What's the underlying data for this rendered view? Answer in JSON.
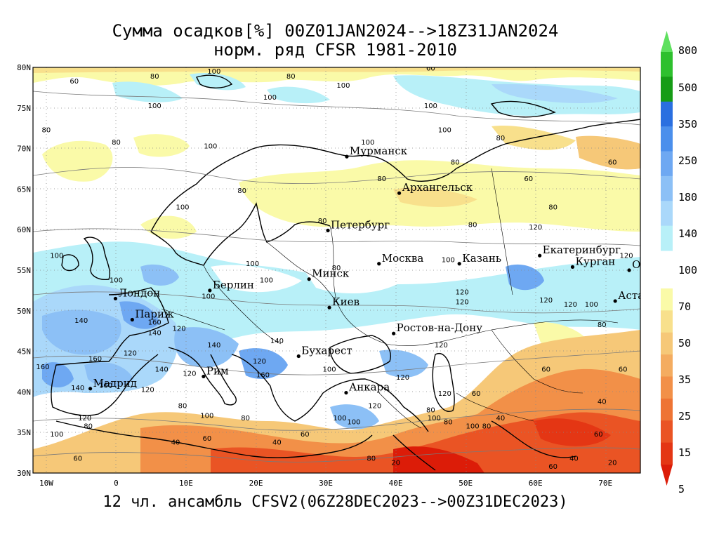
{
  "title": {
    "line1": "Сумма осадков[%] 00Z01JAN2024-->18Z31JAN2024",
    "line2": "норм. ряд CFSR 1981-2010"
  },
  "footer": "12 чл. ансамбль CFSV2(06Z28DEC2023-->00Z31DEC2023)",
  "axes": {
    "lat_labels": [
      "80N",
      "75N",
      "70N",
      "65N",
      "60N",
      "55N",
      "50N",
      "45N",
      "40N",
      "35N",
      "30N"
    ],
    "lon_labels": [
      "10W",
      "0",
      "10E",
      "20E",
      "30E",
      "40E",
      "50E",
      "60E",
      "70E"
    ]
  },
  "colorbar": {
    "upper_labels": [
      "800",
      "500",
      "350",
      "250",
      "180",
      "140"
    ],
    "middle_label": "100",
    "lower_labels": [
      "70",
      "50",
      "35",
      "25",
      "15",
      "5"
    ],
    "upper_colors": [
      "#5ee05e",
      "#2ec02e",
      "#169c16",
      "#2a6fe0",
      "#4b8fec",
      "#6ea8f2",
      "#8cc0f6",
      "#aad8fa",
      "#b8f0f8"
    ],
    "lower_colors": [
      "#fafaa8",
      "#f8e08c",
      "#f6c878",
      "#f4ac60",
      "#f29048",
      "#ee7434",
      "#ea5424",
      "#e43614",
      "#dc1c08"
    ]
  },
  "cities": [
    {
      "name": "Мурманск",
      "lon": 33,
      "lat": 69
    },
    {
      "name": "Архангельск",
      "lon": 40.5,
      "lat": 64.5
    },
    {
      "name": "Петербург",
      "lon": 30.3,
      "lat": 59.9
    },
    {
      "name": "Москва",
      "lon": 37.6,
      "lat": 55.8
    },
    {
      "name": "Казань",
      "lon": 49.1,
      "lat": 55.8
    },
    {
      "name": "Екатеринбург",
      "lon": 60.6,
      "lat": 56.8
    },
    {
      "name": "Курган",
      "lon": 65.3,
      "lat": 55.4
    },
    {
      "name": "Омск",
      "lon": 73.4,
      "lat": 55
    },
    {
      "name": "Астана",
      "lon": 71.4,
      "lat": 51.2
    },
    {
      "name": "Минск",
      "lon": 27.6,
      "lat": 53.9
    },
    {
      "name": "Берлин",
      "lon": 13.4,
      "lat": 52.5
    },
    {
      "name": "Лондон",
      "lon": -0.1,
      "lat": 51.5
    },
    {
      "name": "Париж",
      "lon": 2.3,
      "lat": 48.9
    },
    {
      "name": "Киев",
      "lon": 30.5,
      "lat": 50.4
    },
    {
      "name": "Ростов-на-Дону",
      "lon": 39.7,
      "lat": 47.2
    },
    {
      "name": "Бухарест",
      "lon": 26.1,
      "lat": 44.4
    },
    {
      "name": "Рим",
      "lon": 12.5,
      "lat": 41.9
    },
    {
      "name": "Мадрид",
      "lon": -3.7,
      "lat": 40.4
    },
    {
      "name": "Анкара",
      "lon": 32.9,
      "lat": 39.9
    }
  ],
  "contour_labels": [
    {
      "t": "60",
      "lon": -6,
      "lat": 78
    },
    {
      "t": "80",
      "lon": 5.5,
      "lat": 78.6
    },
    {
      "t": "100",
      "lon": 14,
      "lat": 79.2
    },
    {
      "t": "80",
      "lon": 25,
      "lat": 78.6
    },
    {
      "t": "100",
      "lon": 32.5,
      "lat": 77.5
    },
    {
      "t": "60",
      "lon": 45,
      "lat": 79.6
    },
    {
      "t": "100",
      "lon": 5.5,
      "lat": 75
    },
    {
      "t": "100",
      "lon": 22,
      "lat": 76
    },
    {
      "t": "100",
      "lon": 45,
      "lat": 75
    },
    {
      "t": "80",
      "lon": -10,
      "lat": 72
    },
    {
      "t": "80",
      "lon": 0,
      "lat": 70.5
    },
    {
      "t": "100",
      "lon": 13.5,
      "lat": 70
    },
    {
      "t": "100",
      "lon": 36,
      "lat": 70.5
    },
    {
      "t": "100",
      "lon": 47,
      "lat": 72
    },
    {
      "t": "80",
      "lon": 55,
      "lat": 71
    },
    {
      "t": "80",
      "lon": 38,
      "lat": 66
    },
    {
      "t": "80",
      "lon": 18,
      "lat": 64.5
    },
    {
      "t": "60",
      "lon": 59,
      "lat": 66
    },
    {
      "t": "80",
      "lon": 48.5,
      "lat": 68
    },
    {
      "t": "80",
      "lon": 62.5,
      "lat": 62.5
    },
    {
      "t": "60",
      "lon": 71,
      "lat": 68
    },
    {
      "t": "100",
      "lon": 9.5,
      "lat": 62.5
    },
    {
      "t": "80",
      "lon": 51,
      "lat": 60.3
    },
    {
      "t": "120",
      "lon": 60,
      "lat": 60
    },
    {
      "t": "80",
      "lon": 29.5,
      "lat": 60.8
    },
    {
      "t": "100",
      "lon": -8.5,
      "lat": 56.5
    },
    {
      "t": "80",
      "lon": 31.5,
      "lat": 55
    },
    {
      "t": "100",
      "lon": 19.5,
      "lat": 55.5
    },
    {
      "t": "100",
      "lon": 21.5,
      "lat": 53.5
    },
    {
      "t": "100",
      "lon": 47.5,
      "lat": 56
    },
    {
      "t": "120",
      "lon": 73,
      "lat": 56.5
    },
    {
      "t": "120",
      "lon": 49.5,
      "lat": 52
    },
    {
      "t": "120",
      "lon": 49.5,
      "lat": 50.8
    },
    {
      "t": "120",
      "lon": 61.5,
      "lat": 51
    },
    {
      "t": "120",
      "lon": 65,
      "lat": 50.5
    },
    {
      "t": "100",
      "lon": 68,
      "lat": 50.5
    },
    {
      "t": "80",
      "lon": 69.5,
      "lat": 48
    },
    {
      "t": "100",
      "lon": 13.2,
      "lat": 51.5
    },
    {
      "t": "100",
      "lon": 0,
      "lat": 53.5
    },
    {
      "t": "140",
      "lon": -5,
      "lat": 48.5
    },
    {
      "t": "160",
      "lon": 5.5,
      "lat": 48.3
    },
    {
      "t": "140",
      "lon": 5.5,
      "lat": 47
    },
    {
      "t": "120",
      "lon": 9,
      "lat": 47.5
    },
    {
      "t": "140",
      "lon": 14,
      "lat": 45.5
    },
    {
      "t": "140",
      "lon": 23,
      "lat": 46
    },
    {
      "t": "120",
      "lon": 46.5,
      "lat": 45.5
    },
    {
      "t": "120",
      "lon": 2,
      "lat": 44.5
    },
    {
      "t": "160",
      "lon": -3,
      "lat": 43.8
    },
    {
      "t": "160",
      "lon": -10.5,
      "lat": 42.8
    },
    {
      "t": "120",
      "lon": 20.5,
      "lat": 43.5
    },
    {
      "t": "140",
      "lon": 6.5,
      "lat": 42.5
    },
    {
      "t": "120",
      "lon": 10.5,
      "lat": 42
    },
    {
      "t": "160",
      "lon": 21,
      "lat": 41.8
    },
    {
      "t": "100",
      "lon": 30.5,
      "lat": 42.5
    },
    {
      "t": "120",
      "lon": 41,
      "lat": 41.5
    },
    {
      "t": "160",
      "lon": -1.5,
      "lat": 40.5
    },
    {
      "t": "140",
      "lon": -5.5,
      "lat": 40.2
    },
    {
      "t": "120",
      "lon": 4.5,
      "lat": 40
    },
    {
      "t": "120",
      "lon": 47,
      "lat": 39.5
    },
    {
      "t": "60",
      "lon": 51.5,
      "lat": 39.5
    },
    {
      "t": "60",
      "lon": 61.5,
      "lat": 42.5
    },
    {
      "t": "60",
      "lon": 72.5,
      "lat": 42.5
    },
    {
      "t": "40",
      "lon": 69.5,
      "lat": 38.5
    },
    {
      "t": "80",
      "lon": 9.5,
      "lat": 38
    },
    {
      "t": "100",
      "lon": 13,
      "lat": 36.8
    },
    {
      "t": "80",
      "lon": 18.5,
      "lat": 36.5
    },
    {
      "t": "120",
      "lon": 37,
      "lat": 38
    },
    {
      "t": "80",
      "lon": 45,
      "lat": 37.5
    },
    {
      "t": "100",
      "lon": 45.5,
      "lat": 36.5
    },
    {
      "t": "80",
      "lon": 47.5,
      "lat": 36
    },
    {
      "t": "100",
      "lon": 51,
      "lat": 35.5
    },
    {
      "t": "80",
      "lon": 53,
      "lat": 35.5
    },
    {
      "t": "40",
      "lon": 55,
      "lat": 36.5
    },
    {
      "t": "100",
      "lon": 32,
      "lat": 36.5
    },
    {
      "t": "100",
      "lon": 34,
      "lat": 36
    },
    {
      "t": "120",
      "lon": -4.5,
      "lat": 36.5
    },
    {
      "t": "80",
      "lon": -4,
      "lat": 35.5
    },
    {
      "t": "100",
      "lon": -8.5,
      "lat": 34.5
    },
    {
      "t": "60",
      "lon": 13,
      "lat": 34
    },
    {
      "t": "40",
      "lon": 8.5,
      "lat": 33.5
    },
    {
      "t": "40",
      "lon": 23,
      "lat": 33.5
    },
    {
      "t": "60",
      "lon": 27,
      "lat": 34.5
    },
    {
      "t": "60",
      "lon": 69,
      "lat": 34.5
    },
    {
      "t": "60",
      "lon": -5.5,
      "lat": 31.5
    },
    {
      "t": "80",
      "lon": 36.5,
      "lat": 31.5
    },
    {
      "t": "20",
      "lon": 40,
      "lat": 31
    },
    {
      "t": "40",
      "lon": 65.5,
      "lat": 31.5
    },
    {
      "t": "60",
      "lon": 62.5,
      "lat": 30.5
    },
    {
      "t": "20",
      "lon": 71,
      "lat": 31
    }
  ]
}
